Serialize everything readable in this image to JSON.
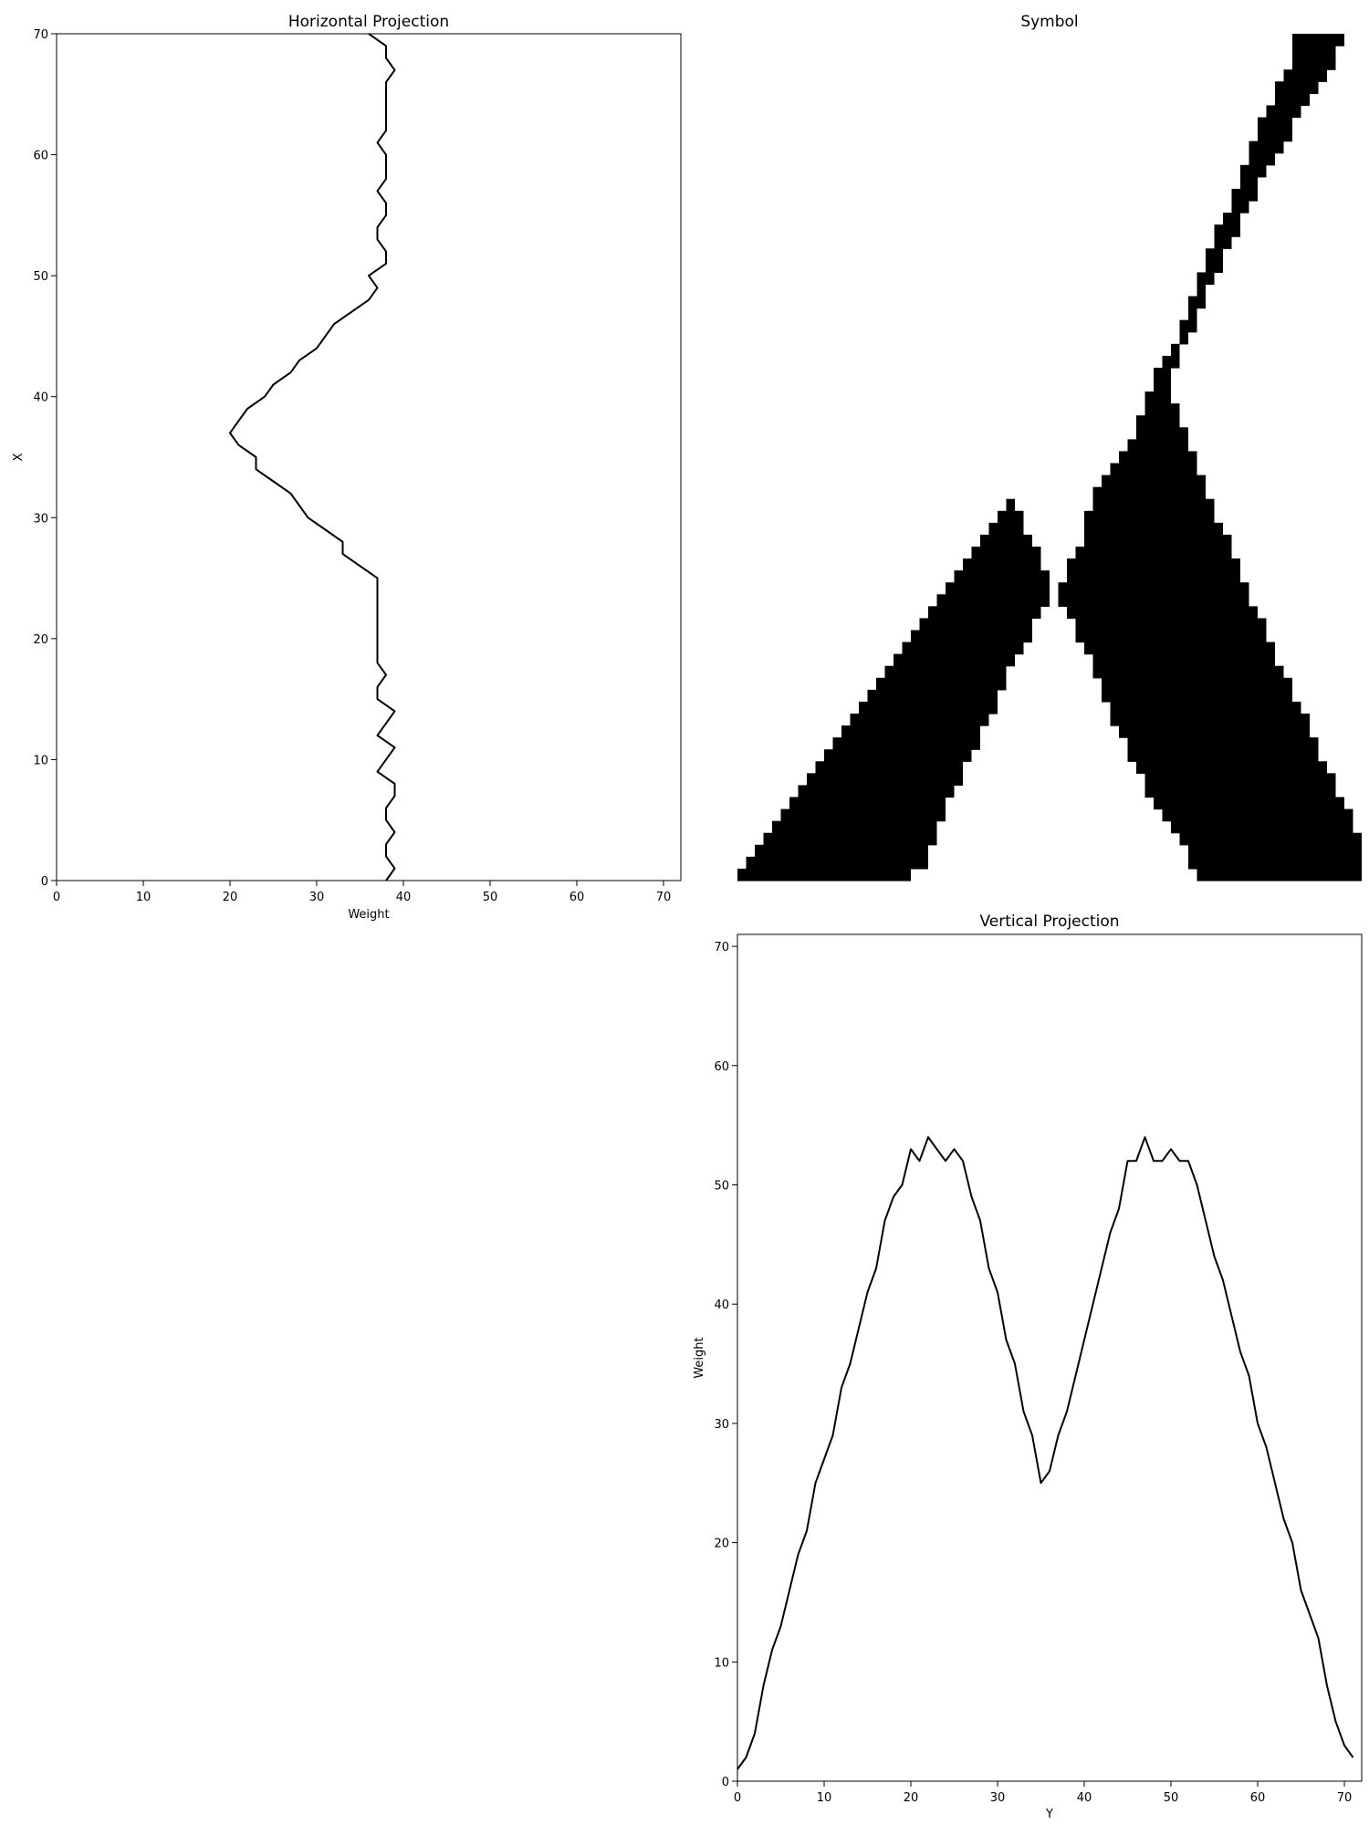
{
  "chart_data": [
    {
      "type": "line",
      "title": "Horizontal Projection",
      "xlabel": "Weight",
      "ylabel": "X",
      "xlim": [
        0,
        72
      ],
      "ylim": [
        0,
        70
      ],
      "xticks": [
        0,
        10,
        20,
        30,
        40,
        50,
        60,
        70
      ],
      "yticks": [
        0,
        10,
        20,
        30,
        40,
        50,
        60,
        70
      ],
      "orientation": "horizontal",
      "x": [
        38,
        39,
        38,
        38,
        39,
        38,
        38,
        39,
        39,
        37,
        38,
        39,
        37,
        38,
        39,
        37,
        37,
        38,
        37,
        37,
        37,
        37,
        37,
        37,
        37,
        37,
        35,
        33,
        33,
        31,
        29,
        28,
        27,
        25,
        23,
        23,
        21,
        20,
        21,
        22,
        24,
        25,
        27,
        28,
        30,
        31,
        32,
        34,
        36,
        37,
        36,
        38,
        38,
        37,
        37,
        38,
        38,
        37,
        38,
        38,
        38,
        37,
        38,
        38,
        38,
        38,
        38,
        39,
        38,
        38,
        36
      ],
      "y": [
        0,
        1,
        2,
        3,
        4,
        5,
        6,
        7,
        8,
        9,
        10,
        11,
        12,
        13,
        14,
        15,
        16,
        17,
        18,
        19,
        20,
        21,
        22,
        23,
        24,
        25,
        26,
        27,
        28,
        29,
        30,
        31,
        32,
        33,
        34,
        35,
        36,
        37,
        38,
        39,
        40,
        41,
        42,
        43,
        44,
        45,
        46,
        47,
        48,
        49,
        50,
        51,
        52,
        53,
        54,
        55,
        56,
        57,
        58,
        59,
        60,
        61,
        62,
        63,
        64,
        65,
        66,
        67,
        68,
        69,
        70
      ]
    },
    {
      "type": "heatmap",
      "title": "Symbol",
      "rows": 71,
      "cols": 72,
      "colormap": [
        "#ffffff",
        "#000000"
      ],
      "row_spans": [
        [
          19,
          0,
          0
        ],
        [
          21,
          1,
          1
        ],
        [
          21,
          2,
          2
        ],
        [
          22,
          3,
          3
        ],
        [
          22,
          4,
          4
        ],
        [
          23,
          5,
          5
        ],
        [
          23,
          6,
          6
        ],
        [
          24,
          7,
          7
        ],
        [
          25,
          8,
          8
        ],
        [
          25,
          9,
          9
        ],
        [
          26,
          10,
          10
        ],
        [
          27,
          11,
          11
        ],
        [
          27,
          12,
          12
        ],
        [
          28,
          13,
          13
        ],
        [
          29,
          14,
          14
        ],
        [
          29,
          15,
          15
        ],
        [
          30,
          16,
          16
        ],
        [
          30,
          17,
          17
        ],
        [
          31,
          18,
          18
        ],
        [
          32,
          19,
          19
        ],
        [
          33,
          20,
          20
        ],
        [
          33,
          21,
          21
        ],
        [
          34,
          22,
          22
        ],
        [
          35,
          23,
          23
        ],
        [
          35,
          24,
          24
        ],
        [
          35,
          25,
          25
        ],
        [
          34,
          26,
          26
        ],
        [
          34,
          27,
          27
        ],
        [
          33,
          28,
          28
        ],
        [
          32,
          29,
          29
        ],
        [
          32,
          30,
          30
        ],
        [
          31,
          31,
          31
        ],
        [
          31,
          32,
          32
        ],
        [
          30,
          33,
          33
        ],
        [
          29,
          34,
          34
        ],
        [
          28,
          35,
          35
        ],
        [
          27,
          36,
          36
        ],
        [
          26,
          37,
          37
        ],
        [
          25,
          38,
          38
        ],
        [
          25,
          39,
          39
        ],
        [
          24,
          40,
          40
        ],
        [
          23,
          41,
          41
        ],
        [
          22,
          42,
          42
        ],
        [
          21,
          43,
          43
        ],
        [
          20,
          44,
          44
        ],
        [
          20,
          45,
          45
        ],
        [
          19,
          46,
          46
        ],
        [
          18,
          47,
          47
        ],
        [
          17,
          48,
          48
        ],
        [
          16,
          49,
          49
        ],
        [
          15,
          50,
          50
        ],
        [
          14,
          51,
          51
        ],
        [
          13,
          52,
          52
        ],
        [
          12,
          53,
          53
        ],
        [
          12,
          54,
          54
        ],
        [
          11,
          55,
          55
        ],
        [
          10,
          56,
          56
        ],
        [
          10,
          57,
          57
        ],
        [
          9,
          58,
          58
        ],
        [
          9,
          59,
          59
        ],
        [
          8,
          60,
          60
        ],
        [
          7,
          61,
          61
        ],
        [
          7,
          62,
          62
        ],
        [
          6,
          63,
          63
        ],
        [
          6,
          64,
          64
        ],
        [
          5,
          65,
          65
        ],
        [
          4,
          66,
          66
        ],
        [
          3,
          67,
          67
        ],
        [
          3,
          68,
          68
        ],
        [
          2,
          69,
          69
        ],
        [
          2,
          70,
          70
        ]
      ],
      "row_right": [
        [
          53,
          72
        ],
        [
          52,
          71
        ],
        [
          52,
          71
        ],
        [
          51,
          71
        ],
        [
          50,
          70
        ],
        [
          49,
          70
        ],
        [
          48,
          69
        ],
        [
          47,
          68
        ],
        [
          47,
          68
        ],
        [
          46,
          67
        ],
        [
          45,
          66
        ],
        [
          45,
          66
        ],
        [
          44,
          65
        ],
        [
          43,
          65
        ],
        [
          43,
          64
        ],
        [
          42,
          63
        ],
        [
          42,
          63
        ],
        [
          41,
          62
        ],
        [
          41,
          61
        ],
        [
          40,
          61
        ],
        [
          39,
          60
        ],
        [
          39,
          60
        ],
        [
          38,
          59
        ],
        [
          37,
          58
        ],
        [
          37,
          58
        ],
        [
          38,
          57
        ],
        [
          38,
          57
        ],
        [
          39,
          56
        ],
        [
          40,
          56
        ],
        [
          40,
          55
        ],
        [
          40,
          54
        ],
        [
          41,
          54
        ],
        [
          41,
          53
        ],
        [
          42,
          53
        ],
        [
          43,
          52
        ],
        [
          44,
          52
        ],
        [
          45,
          51
        ],
        [
          46,
          51
        ],
        [
          46,
          50
        ],
        [
          47,
          50
        ],
        [
          47,
          49
        ],
        [
          48,
          49
        ],
        [
          48,
          49
        ],
        [
          49,
          50
        ],
        [
          50,
          50
        ],
        [
          51,
          51
        ],
        [
          51,
          52
        ],
        [
          52,
          52
        ],
        [
          52,
          53
        ],
        [
          53,
          53
        ],
        [
          53,
          54
        ],
        [
          54,
          55
        ],
        [
          54,
          55
        ],
        [
          55,
          56
        ],
        [
          55,
          57
        ],
        [
          56,
          57
        ],
        [
          57,
          58
        ],
        [
          57,
          59
        ],
        [
          58,
          59
        ],
        [
          58,
          60
        ],
        [
          59,
          61
        ],
        [
          59,
          62
        ],
        [
          60,
          63
        ],
        [
          60,
          63
        ],
        [
          61,
          64
        ],
        [
          62,
          65
        ],
        [
          62,
          66
        ],
        [
          63,
          67
        ],
        [
          64,
          68
        ],
        [
          64,
          68
        ],
        [
          64,
          69
        ]
      ]
    },
    {
      "type": "line",
      "title": "Vertical Projection",
      "xlabel": "Y",
      "ylabel": "Weight",
      "xlim": [
        0,
        72
      ],
      "ylim": [
        0,
        71
      ],
      "xticks": [
        0,
        10,
        20,
        30,
        40,
        50,
        60,
        70
      ],
      "yticks": [
        0,
        10,
        20,
        30,
        40,
        50,
        60,
        70
      ],
      "x": [
        0,
        1,
        2,
        3,
        4,
        5,
        6,
        7,
        8,
        9,
        10,
        11,
        12,
        13,
        14,
        15,
        16,
        17,
        18,
        19,
        20,
        21,
        22,
        23,
        24,
        25,
        26,
        27,
        28,
        29,
        30,
        31,
        32,
        33,
        34,
        35,
        36,
        37,
        38,
        39,
        40,
        41,
        42,
        43,
        44,
        45,
        46,
        47,
        48,
        49,
        50,
        51,
        52,
        53,
        54,
        55,
        56,
        57,
        58,
        59,
        60,
        61,
        62,
        63,
        64,
        65,
        66,
        67,
        68,
        69,
        70,
        71
      ],
      "y": [
        1,
        2,
        4,
        8,
        11,
        13,
        16,
        19,
        21,
        25,
        27,
        29,
        33,
        35,
        38,
        41,
        43,
        47,
        49,
        50,
        53,
        52,
        54,
        53,
        52,
        53,
        52,
        49,
        47,
        43,
        41,
        37,
        35,
        31,
        29,
        25,
        26,
        29,
        31,
        34,
        37,
        40,
        43,
        46,
        48,
        52,
        52,
        54,
        52,
        52,
        53,
        52,
        52,
        50,
        47,
        44,
        42,
        39,
        36,
        34,
        30,
        28,
        25,
        22,
        20,
        16,
        14,
        12,
        8,
        5,
        3,
        2
      ]
    }
  ]
}
